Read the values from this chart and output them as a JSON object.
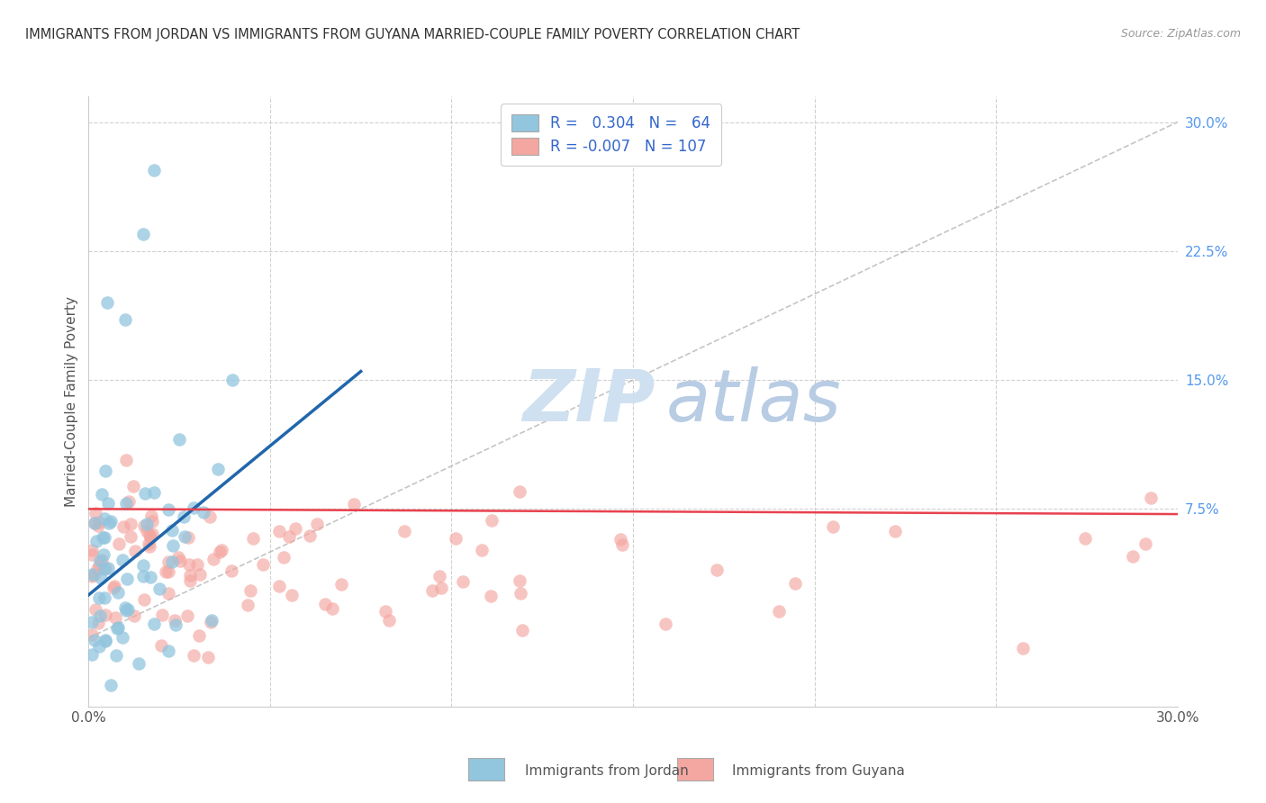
{
  "title": "IMMIGRANTS FROM JORDAN VS IMMIGRANTS FROM GUYANA MARRIED-COUPLE FAMILY POVERTY CORRELATION CHART",
  "source": "Source: ZipAtlas.com",
  "ylabel": "Married-Couple Family Poverty",
  "xlim": [
    0.0,
    0.3
  ],
  "ylim": [
    -0.04,
    0.315
  ],
  "jordan_color": "#92c5de",
  "guyana_color": "#f4a6a0",
  "jordan_line_color": "#2166ac",
  "guyana_line_color": "#e8414e",
  "diagonal_color": "#bbbbbb",
  "background_color": "#ffffff",
  "grid_color": "#cccccc",
  "jordan_R": 0.304,
  "jordan_N": 64,
  "guyana_R": -0.007,
  "guyana_N": 107,
  "right_yticks": [
    0.075,
    0.15,
    0.225,
    0.3
  ],
  "right_ytick_labels": [
    "7.5%",
    "15.0%",
    "22.5%",
    "30.0%"
  ],
  "jordan_line_x": [
    0.0,
    0.075
  ],
  "jordan_line_y": [
    0.025,
    0.155
  ],
  "guyana_line_x": [
    0.0,
    0.3
  ],
  "guyana_line_y": [
    0.075,
    0.072
  ]
}
